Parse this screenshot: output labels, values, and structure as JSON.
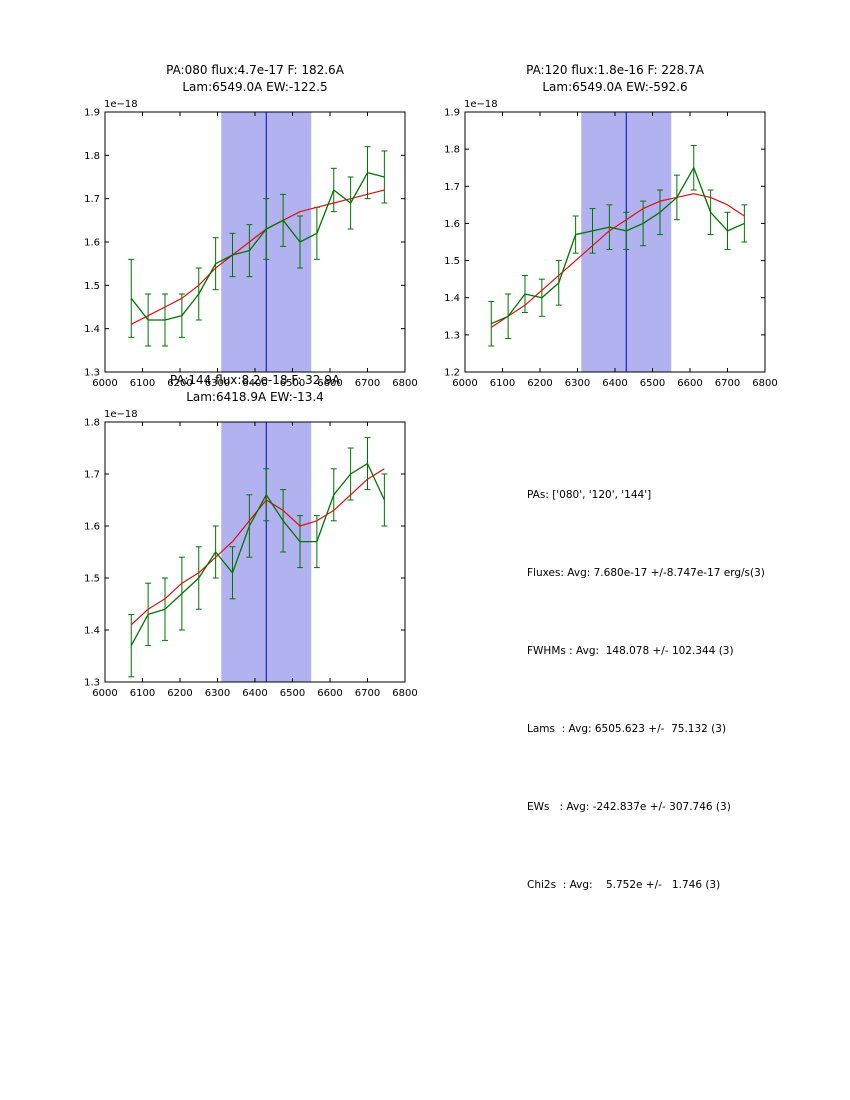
{
  "colors": {
    "data_line": "#007500",
    "fit_line": "#dd1111",
    "band_fill": "#b2b2f0",
    "vline": "#0000bb",
    "axis": "#000000"
  },
  "stats": {
    "lines": [
      "PAs: ['080', '120', '144']",
      "Fluxes: Avg: 7.680e-17 +/-8.747e-17 erg/s(3)",
      "FWHMs : Avg:  148.078 +/- 102.344 (3)",
      "Lams  : Avg: 6505.623 +/-  75.132 (3)",
      "EWs   : Avg: -242.837e +/- 307.746 (3)",
      "Chi2s  : Avg:    5.752e +/-   1.746 (3)"
    ]
  },
  "chart_data": [
    {
      "type": "line",
      "title_line1": "PA:080 flux:4.7e-17 F: 182.6A",
      "title_line2": "Lam:6549.0A EW:-122.5",
      "offset_label": "1e−18",
      "xlim": [
        6000,
        6800
      ],
      "ylim": [
        1.3,
        1.9
      ],
      "xticks": [
        6000,
        6100,
        6200,
        6300,
        6400,
        6500,
        6600,
        6700,
        6800
      ],
      "yticks": [
        1.3,
        1.4,
        1.5,
        1.6,
        1.7,
        1.8,
        1.9
      ],
      "band": [
        6310,
        6550
      ],
      "vline": 6430,
      "x": [
        6070,
        6115,
        6160,
        6205,
        6250,
        6295,
        6340,
        6385,
        6430,
        6475,
        6520,
        6565,
        6610,
        6655,
        6700,
        6745
      ],
      "y": [
        1.47,
        1.42,
        1.42,
        1.43,
        1.48,
        1.55,
        1.57,
        1.58,
        1.63,
        1.65,
        1.6,
        1.62,
        1.72,
        1.69,
        1.76,
        1.75
      ],
      "yerr": [
        0.09,
        0.06,
        0.06,
        0.05,
        0.06,
        0.06,
        0.05,
        0.06,
        0.07,
        0.06,
        0.06,
        0.06,
        0.05,
        0.06,
        0.06,
        0.06
      ],
      "fit_y": [
        1.41,
        1.43,
        1.45,
        1.47,
        1.5,
        1.54,
        1.57,
        1.6,
        1.63,
        1.65,
        1.67,
        1.68,
        1.69,
        1.7,
        1.71,
        1.72
      ]
    },
    {
      "type": "line",
      "title_line1": "PA:120 flux:1.8e-16 F: 228.7A",
      "title_line2": "Lam:6549.0A EW:-592.6",
      "offset_label": "1e−18",
      "xlim": [
        6000,
        6800
      ],
      "ylim": [
        1.2,
        1.9
      ],
      "xticks": [
        6000,
        6100,
        6200,
        6300,
        6400,
        6500,
        6600,
        6700,
        6800
      ],
      "yticks": [
        1.2,
        1.3,
        1.4,
        1.5,
        1.6,
        1.7,
        1.8,
        1.9
      ],
      "band": [
        6310,
        6550
      ],
      "vline": 6430,
      "x": [
        6070,
        6115,
        6160,
        6205,
        6250,
        6295,
        6340,
        6385,
        6430,
        6475,
        6520,
        6565,
        6610,
        6655,
        6700,
        6745
      ],
      "y": [
        1.33,
        1.35,
        1.41,
        1.4,
        1.44,
        1.57,
        1.58,
        1.59,
        1.58,
        1.6,
        1.63,
        1.67,
        1.75,
        1.63,
        1.58,
        1.6
      ],
      "yerr": [
        0.06,
        0.06,
        0.05,
        0.05,
        0.06,
        0.05,
        0.06,
        0.06,
        0.05,
        0.06,
        0.06,
        0.06,
        0.06,
        0.06,
        0.05,
        0.05
      ],
      "fit_y": [
        1.32,
        1.35,
        1.38,
        1.42,
        1.46,
        1.5,
        1.54,
        1.58,
        1.61,
        1.64,
        1.66,
        1.67,
        1.68,
        1.67,
        1.65,
        1.62
      ]
    },
    {
      "type": "line",
      "title_line1": "PA:144 flux:8.2e-18 F: 32.9A",
      "title_line2": "Lam:6418.9A EW:-13.4",
      "offset_label": "1e−18",
      "xlim": [
        6000,
        6800
      ],
      "ylim": [
        1.3,
        1.8
      ],
      "xticks": [
        6000,
        6100,
        6200,
        6300,
        6400,
        6500,
        6600,
        6700,
        6800
      ],
      "yticks": [
        1.3,
        1.4,
        1.5,
        1.6,
        1.7,
        1.8
      ],
      "band": [
        6310,
        6550
      ],
      "vline": 6430,
      "x": [
        6070,
        6115,
        6160,
        6205,
        6250,
        6295,
        6340,
        6385,
        6430,
        6475,
        6520,
        6565,
        6610,
        6655,
        6700,
        6745
      ],
      "y": [
        1.37,
        1.43,
        1.44,
        1.47,
        1.5,
        1.55,
        1.51,
        1.6,
        1.66,
        1.61,
        1.57,
        1.57,
        1.66,
        1.7,
        1.72,
        1.65
      ],
      "yerr": [
        0.06,
        0.06,
        0.06,
        0.07,
        0.06,
        0.05,
        0.05,
        0.06,
        0.05,
        0.06,
        0.05,
        0.05,
        0.05,
        0.05,
        0.05,
        0.05
      ],
      "fit_y": [
        1.41,
        1.44,
        1.46,
        1.49,
        1.51,
        1.54,
        1.57,
        1.61,
        1.65,
        1.63,
        1.6,
        1.61,
        1.63,
        1.66,
        1.69,
        1.71
      ]
    }
  ]
}
